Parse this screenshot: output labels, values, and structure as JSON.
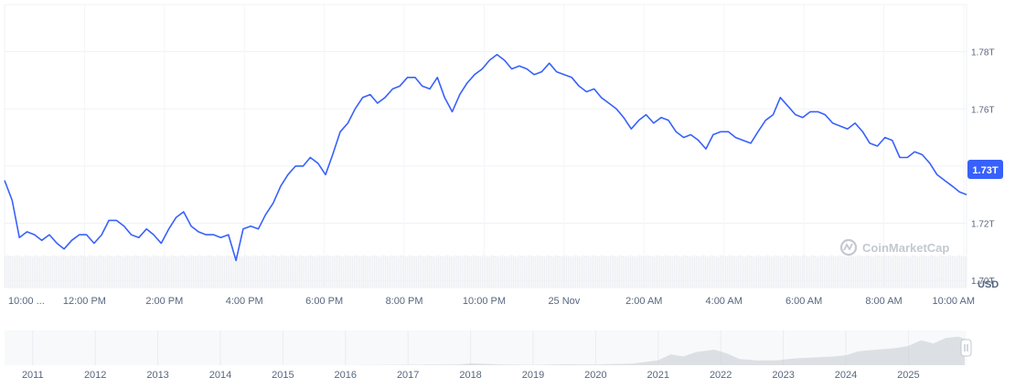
{
  "chart_data": [
    {
      "type": "line",
      "currency_label": "USD",
      "current_value_label": "1.73T",
      "watermark": "CoinMarketCap",
      "y_ticks": [
        {
          "value": 1.7,
          "label": "1.70T"
        },
        {
          "value": 1.72,
          "label": "1.72T"
        },
        {
          "value": 1.74,
          "label": "1.74T"
        },
        {
          "value": 1.76,
          "label": "1.76T"
        },
        {
          "value": 1.78,
          "label": "1.78T"
        }
      ],
      "ylim": [
        1.6975,
        1.7965
      ],
      "x_range_hours": [
        0,
        24.07
      ],
      "x_ticks": [
        {
          "hours": 0.0,
          "label": "10:00 ..."
        },
        {
          "hours": 2.0,
          "label": "12:00 PM"
        },
        {
          "hours": 4.0,
          "label": "2:00 PM"
        },
        {
          "hours": 6.0,
          "label": "4:00 PM"
        },
        {
          "hours": 8.0,
          "label": "6:00 PM"
        },
        {
          "hours": 10.0,
          "label": "8:00 PM"
        },
        {
          "hours": 12.0,
          "label": "10:00 PM"
        },
        {
          "hours": 14.0,
          "label": "25 Nov"
        },
        {
          "hours": 16.0,
          "label": "2:00 AM"
        },
        {
          "hours": 18.0,
          "label": "4:00 AM"
        },
        {
          "hours": 20.0,
          "label": "6:00 AM"
        },
        {
          "hours": 22.0,
          "label": "8:00 AM"
        },
        {
          "hours": 24.0,
          "label": "10:00 AM"
        }
      ],
      "x_hours": [
        0,
        0.19,
        0.37,
        0.56,
        0.75,
        0.93,
        1.12,
        1.31,
        1.49,
        1.68,
        1.87,
        2.05,
        2.24,
        2.43,
        2.61,
        2.8,
        2.99,
        3.17,
        3.36,
        3.55,
        3.73,
        3.92,
        4.11,
        4.29,
        4.48,
        4.67,
        4.85,
        5.04,
        5.23,
        5.41,
        5.6,
        5.79,
        5.97,
        6.16,
        6.35,
        6.53,
        6.72,
        6.91,
        7.09,
        7.28,
        7.47,
        7.65,
        7.84,
        8.03,
        8.21,
        8.4,
        8.59,
        8.77,
        8.96,
        9.15,
        9.33,
        9.52,
        9.71,
        9.89,
        10.08,
        10.27,
        10.45,
        10.64,
        10.83,
        11.01,
        11.2,
        11.39,
        11.57,
        11.76,
        11.95,
        12.13,
        12.32,
        12.51,
        12.69,
        12.88,
        13.07,
        13.25,
        13.44,
        13.63,
        13.81,
        14.0,
        14.19,
        14.37,
        14.56,
        14.75,
        14.93,
        15.12,
        15.31,
        15.49,
        15.68,
        15.87,
        16.05,
        16.24,
        16.43,
        16.61,
        16.8,
        16.99,
        17.17,
        17.36,
        17.55,
        17.73,
        17.92,
        18.11,
        18.29,
        18.48,
        18.67,
        18.85,
        19.04,
        19.23,
        19.41,
        19.6,
        19.79,
        19.97,
        20.16,
        20.35,
        20.53,
        20.72,
        20.91,
        21.09,
        21.28,
        21.47,
        21.65,
        21.84,
        22.03,
        22.21,
        22.4,
        22.59,
        22.77,
        22.96,
        23.15,
        23.33,
        23.52,
        23.71,
        23.89,
        24.07
      ],
      "series": [
        {
          "color": "#3861fb",
          "values": [
            1.735,
            1.728,
            1.715,
            1.717,
            1.716,
            1.714,
            1.716,
            1.713,
            1.711,
            1.714,
            1.716,
            1.716,
            1.713,
            1.716,
            1.721,
            1.721,
            1.719,
            1.716,
            1.715,
            1.718,
            1.716,
            1.713,
            1.718,
            1.722,
            1.724,
            1.719,
            1.717,
            1.716,
            1.716,
            1.715,
            1.716,
            1.707,
            1.718,
            1.719,
            1.718,
            1.723,
            1.727,
            1.733,
            1.737,
            1.74,
            1.74,
            1.743,
            1.741,
            1.737,
            1.744,
            1.752,
            1.755,
            1.76,
            1.764,
            1.765,
            1.762,
            1.764,
            1.767,
            1.768,
            1.771,
            1.771,
            1.768,
            1.767,
            1.771,
            1.764,
            1.759,
            1.765,
            1.769,
            1.772,
            1.774,
            1.777,
            1.779,
            1.777,
            1.774,
            1.775,
            1.774,
            1.772,
            1.773,
            1.776,
            1.773,
            1.772,
            1.771,
            1.768,
            1.766,
            1.767,
            1.764,
            1.762,
            1.76,
            1.757,
            1.753,
            1.756,
            1.758,
            1.755,
            1.757,
            1.756,
            1.752,
            1.75,
            1.751,
            1.749,
            1.746,
            1.751,
            1.752,
            1.752,
            1.75,
            1.749,
            1.748,
            1.752,
            1.756,
            1.758,
            1.764,
            1.761,
            1.758,
            1.757,
            1.759,
            1.759,
            1.758,
            1.755,
            1.754,
            1.753,
            1.755,
            1.752,
            1.748,
            1.747,
            1.75,
            1.749,
            1.743,
            1.743,
            1.745,
            1.744,
            1.741,
            1.737,
            1.735,
            1.733,
            1.731,
            1.73
          ]
        }
      ],
      "grid": true,
      "volume_bars": true
    },
    {
      "type": "area",
      "role": "navigator",
      "color": "#c9ced6",
      "x_ticks": [
        {
          "year": 2011,
          "label": "2011"
        },
        {
          "year": 2012,
          "label": "2012"
        },
        {
          "year": 2013,
          "label": "2013"
        },
        {
          "year": 2014,
          "label": "2014"
        },
        {
          "year": 2015,
          "label": "2015"
        },
        {
          "year": 2016,
          "label": "2016"
        },
        {
          "year": 2017,
          "label": "2017"
        },
        {
          "year": 2018,
          "label": "2018"
        },
        {
          "year": 2019,
          "label": "2019"
        },
        {
          "year": 2020,
          "label": "2020"
        },
        {
          "year": 2021,
          "label": "2021"
        },
        {
          "year": 2022,
          "label": "2022"
        },
        {
          "year": 2023,
          "label": "2023"
        },
        {
          "year": 2024,
          "label": "2024"
        },
        {
          "year": 2025,
          "label": "2025"
        }
      ],
      "xlim": [
        2010.55,
        2025.93
      ],
      "ylim": [
        0,
        1.0
      ],
      "x": [
        2010.6,
        2013.0,
        2016.0,
        2017.8,
        2018.0,
        2018.5,
        2019.0,
        2019.5,
        2020.0,
        2020.6,
        2021.0,
        2021.2,
        2021.4,
        2021.6,
        2021.9,
        2022.1,
        2022.3,
        2022.6,
        2022.9,
        2023.2,
        2023.5,
        2023.8,
        2024.0,
        2024.2,
        2024.5,
        2024.8,
        2025.0,
        2025.2,
        2025.4,
        2025.6,
        2025.8,
        2025.9
      ],
      "values": [
        0.0,
        0.0,
        0.0,
        0.02,
        0.06,
        0.02,
        0.01,
        0.03,
        0.02,
        0.05,
        0.16,
        0.35,
        0.28,
        0.42,
        0.5,
        0.38,
        0.2,
        0.15,
        0.16,
        0.22,
        0.25,
        0.28,
        0.32,
        0.45,
        0.5,
        0.55,
        0.62,
        0.8,
        0.7,
        0.88,
        0.92,
        0.85
      ]
    }
  ]
}
